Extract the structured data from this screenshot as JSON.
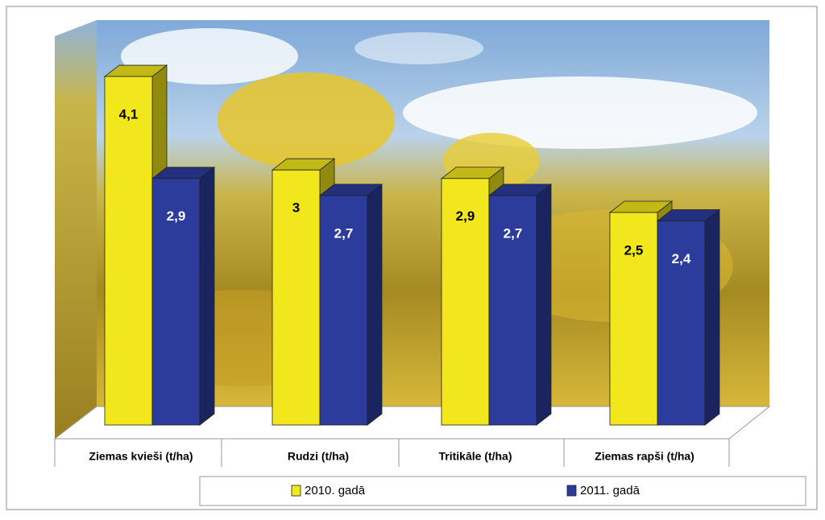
{
  "chart_data": {
    "type": "bar3d",
    "categories": [
      "Ziemas kvieši (t/ha)",
      "Rudzi (t/ha)",
      "Tritikāle (t/ha)",
      "Ziemas rapši (t/ha)"
    ],
    "series": [
      {
        "name": "2010. gadā",
        "color": "#f2e61c",
        "values": [
          4.1,
          3,
          2.9,
          2.5
        ],
        "value_labels": [
          "4,1",
          "3",
          "2,9",
          "2,5"
        ]
      },
      {
        "name": "2011. gadā",
        "color": "#2b3c9c",
        "values": [
          2.9,
          2.7,
          2.7,
          2.4
        ],
        "value_labels": [
          "2,9",
          "2,7",
          "2,7",
          "2,4"
        ]
      }
    ],
    "legend": "bottom"
  }
}
